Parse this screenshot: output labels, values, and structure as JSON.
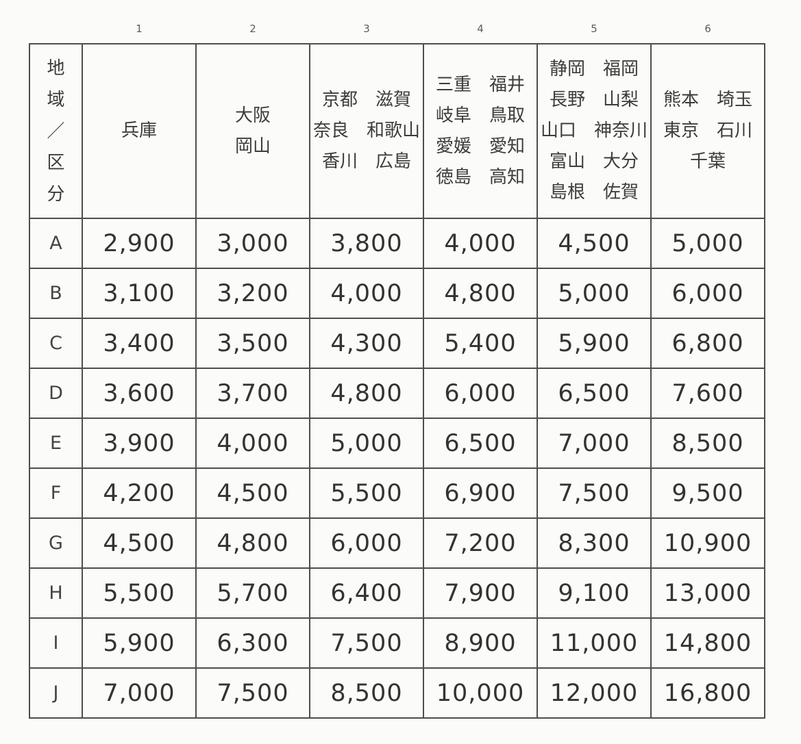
{
  "table": {
    "column_numbers": [
      "1",
      "2",
      "3",
      "4",
      "5",
      "6"
    ],
    "corner_header": "地\n域\n／\n区\n分",
    "region_headers": [
      "兵庫",
      "大阪\n岡山",
      "京都　滋賀\n奈良　和歌山\n香川　広島",
      "三重　福井\n岐阜　鳥取\n愛媛　愛知\n徳島　高知",
      "静岡　福岡\n長野　山梨\n山口　神奈川\n富山　大分\n島根　佐賀",
      "熊本　埼玉\n東京　石川\n千葉"
    ],
    "rows": [
      {
        "zone": "A",
        "fares": [
          "2,900",
          "3,000",
          "3,800",
          "4,000",
          "4,500",
          "5,000"
        ]
      },
      {
        "zone": "B",
        "fares": [
          "3,100",
          "3,200",
          "4,000",
          "4,800",
          "5,000",
          "6,000"
        ]
      },
      {
        "zone": "C",
        "fares": [
          "3,400",
          "3,500",
          "4,300",
          "5,400",
          "5,900",
          "6,800"
        ]
      },
      {
        "zone": "D",
        "fares": [
          "3,600",
          "3,700",
          "4,800",
          "6,000",
          "6,500",
          "7,600"
        ]
      },
      {
        "zone": "E",
        "fares": [
          "3,900",
          "4,000",
          "5,000",
          "6,500",
          "7,000",
          "8,500"
        ]
      },
      {
        "zone": "F",
        "fares": [
          "4,200",
          "4,500",
          "5,500",
          "6,900",
          "7,500",
          "9,500"
        ]
      },
      {
        "zone": "G",
        "fares": [
          "4,500",
          "4,800",
          "6,000",
          "7,200",
          "8,300",
          "10,900"
        ]
      },
      {
        "zone": "H",
        "fares": [
          "5,500",
          "5,700",
          "6,400",
          "7,900",
          "9,100",
          "13,000"
        ]
      },
      {
        "zone": "I",
        "fares": [
          "5,900",
          "6,300",
          "7,500",
          "8,900",
          "11,000",
          "14,800"
        ]
      },
      {
        "zone": "J",
        "fares": [
          "7,000",
          "7,500",
          "8,500",
          "10,000",
          "12,000",
          "16,800"
        ]
      }
    ],
    "colors": {
      "grid_line": "#4d4d4d",
      "background": "#fbfbf9",
      "text": "#3c3c3c",
      "fare_text": "#333333"
    }
  }
}
